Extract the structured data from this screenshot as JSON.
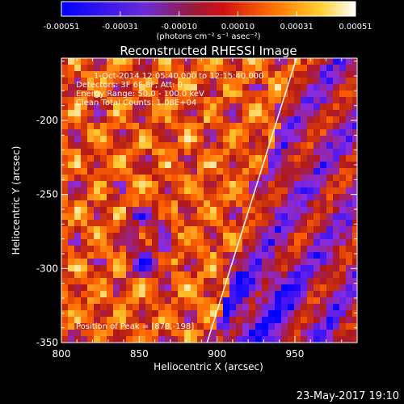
{
  "colorbar": {
    "ticks": [
      "-0.00051",
      "-0.00031",
      "-0.00010",
      "0.00010",
      "0.00031",
      "0.00051"
    ],
    "unit_label": "(photons cm⁻² s⁻¹ asec⁻²)"
  },
  "footer": {
    "timestamp": "23-May-2017 19:10"
  },
  "chart_data": {
    "type": "heatmap",
    "title": "Reconstructed RHESSI Image",
    "xlabel": "Heliocentric X (arcsec)",
    "ylabel": "Heliocentric Y (arcsec)",
    "xlim": [
      800,
      990
    ],
    "ylim": [
      -350,
      -158
    ],
    "xticks": [
      800,
      850,
      900,
      950
    ],
    "yticks": [
      -200,
      -250,
      -300,
      -350
    ],
    "color_range": [
      -0.00051,
      0.00051
    ],
    "colormap": [
      "#0000ff",
      "#8a2be2",
      "#b01818",
      "#ff6000",
      "#ffc830",
      "#ffffff"
    ],
    "limb_line": {
      "color": "#ffffff"
    },
    "annotations": [
      "1-Oct-2014 12:05:40.000 to 12:15:40.000",
      "Detectors: 3F 6F 8F; Att: 0",
      "Energy Range: 50.0 - 100.0 keV",
      "Clean   Total Counts: 1.08E+04"
    ],
    "peak_text": "Position of Peak = [878,-198]"
  }
}
